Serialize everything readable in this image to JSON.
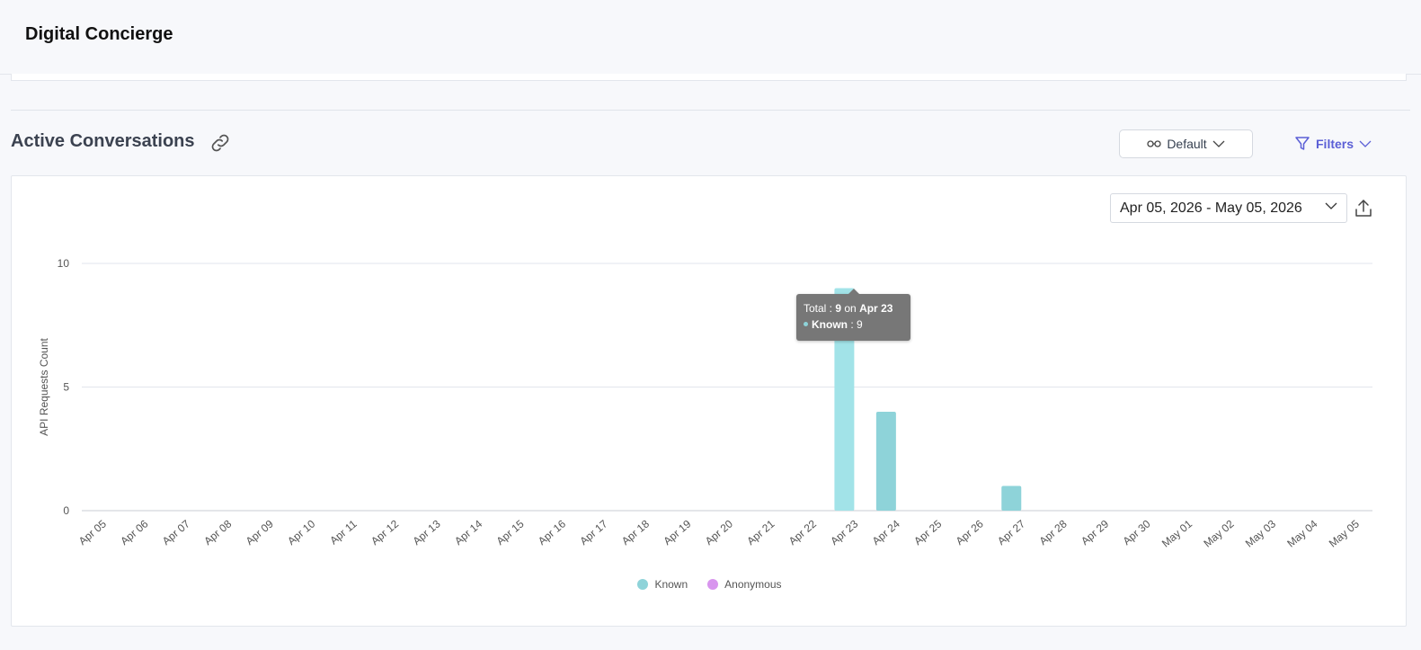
{
  "app": {
    "title": "Digital Concierge"
  },
  "section": {
    "title": "Active Conversations",
    "view_label": "Default",
    "filters_label": "Filters"
  },
  "card": {
    "date_range": "Apr 05, 2026 - May 05, 2026"
  },
  "tooltip": {
    "total_label": "Total : ",
    "total_value": "9",
    "on_label": " on ",
    "date": "Apr 23",
    "series_label": "Known",
    "series_sep": " : ",
    "series_value": "9"
  },
  "colors": {
    "known": "#8ed3d9",
    "known_hover": "#a2e3e8",
    "anonymous": "#d895ee",
    "accent": "#5b5fd6"
  },
  "chart_data": {
    "type": "bar",
    "ylabel": "API Requests Count",
    "xlabel": "",
    "ylim": [
      0,
      10
    ],
    "yticks": [
      0,
      5,
      10
    ],
    "grid": true,
    "legend_position": "bottom",
    "categories": [
      "Apr 05",
      "Apr 06",
      "Apr 07",
      "Apr 08",
      "Apr 09",
      "Apr 10",
      "Apr 11",
      "Apr 12",
      "Apr 13",
      "Apr 14",
      "Apr 15",
      "Apr 16",
      "Apr 17",
      "Apr 18",
      "Apr 19",
      "Apr 20",
      "Apr 21",
      "Apr 22",
      "Apr 23",
      "Apr 24",
      "Apr 25",
      "Apr 26",
      "Apr 27",
      "Apr 28",
      "Apr 29",
      "Apr 30",
      "May 01",
      "May 02",
      "May 03",
      "May 04",
      "May 05"
    ],
    "series": [
      {
        "name": "Known",
        "values": [
          0,
          0,
          0,
          0,
          0,
          0,
          0,
          0,
          0,
          0,
          0,
          0,
          0,
          0,
          0,
          0,
          0,
          0,
          9,
          4,
          0,
          0,
          1,
          0,
          0,
          0,
          0,
          0,
          0,
          0,
          0
        ]
      },
      {
        "name": "Anonymous",
        "values": [
          0,
          0,
          0,
          0,
          0,
          0,
          0,
          0,
          0,
          0,
          0,
          0,
          0,
          0,
          0,
          0,
          0,
          0,
          0,
          0,
          0,
          0,
          0,
          0,
          0,
          0,
          0,
          0,
          0,
          0,
          0
        ]
      }
    ],
    "highlighted_category": "Apr 23"
  }
}
